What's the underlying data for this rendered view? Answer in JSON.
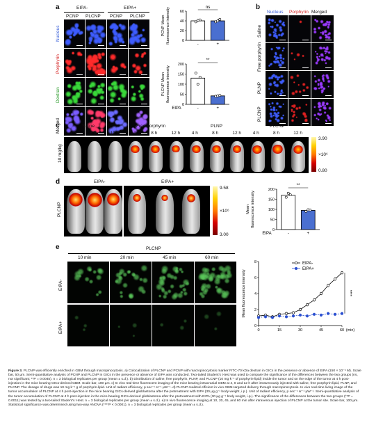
{
  "panel_a": {
    "letter": "a",
    "group_eipa_minus": "EIPA-",
    "group_eipa_plus": "EIPA+",
    "col_labels": [
      "PCNP",
      "PLCNP",
      "PCNP",
      "PLCNP"
    ],
    "row_labels": [
      "Nucleus",
      "Porphyrin",
      "Dextran",
      "Merged"
    ],
    "row_colors": [
      "#3a5fd8",
      "#d42020",
      "#2a9a2a",
      "#111111"
    ]
  },
  "panel_b": {
    "letter": "b",
    "legend_nucleus": "Nucleus",
    "legend_porphyrin": "Porphyrin",
    "legend_merged": "Merged",
    "row_labels": [
      "Saline",
      "Free porphyrin",
      "PLNP",
      "PLCNP"
    ]
  },
  "panel_c": {
    "letter": "c",
    "groups": [
      "Saline",
      "Free porphyrin",
      "PLNP",
      "PLCNP"
    ],
    "times": [
      "4 h",
      "8 h",
      "12 h"
    ],
    "dose_label": "10 mg/kg",
    "colorbar_max": "3.90",
    "colorbar_unit": "×10⁶",
    "colorbar_min": "0.80"
  },
  "panel_d": {
    "letter": "d",
    "group_minus": "EIPA-",
    "group_plus": "EIPA+",
    "row_label": "PLCNP",
    "colorbar_max": "9.58",
    "colorbar_unit": "×10⁶",
    "colorbar_min": "3.00"
  },
  "panel_e": {
    "letter": "e",
    "title": "PLCNP",
    "times": [
      "10 min",
      "20 min",
      "45 min",
      "60 min"
    ],
    "row_labels": [
      "EIPA-",
      "EIPA+"
    ]
  },
  "chart_data": [
    {
      "id": "a-top",
      "type": "bar",
      "categories": [
        "-",
        "+"
      ],
      "values": [
        40,
        40
      ],
      "points": [
        [
          38,
          41,
          42
        ],
        [
          38,
          40,
          43
        ]
      ],
      "ylabel": "PCNP Mean fluorescence intensity",
      "ylim": [
        0,
        60
      ],
      "yticks": [
        "0",
        "20",
        "40",
        "60"
      ],
      "significance": "ns",
      "colors": [
        "#ffffff",
        "#4a6fd0"
      ]
    },
    {
      "id": "a-bottom",
      "type": "bar",
      "categories": [
        "-",
        "+"
      ],
      "values": [
        130,
        42
      ],
      "points": [
        [
          155,
          100,
          135
        ],
        [
          40,
          42,
          44
        ]
      ],
      "ylabel": "PLCNP Mean fluorescence intensity",
      "xlabel": "EIPA",
      "ylim": [
        0,
        200
      ],
      "yticks": [
        "0",
        "50",
        "100",
        "150",
        "200"
      ],
      "significance": "**",
      "colors": [
        "#ffffff",
        "#4a6fd0"
      ]
    },
    {
      "id": "d",
      "type": "bar",
      "categories": [
        "-",
        "+"
      ],
      "values": [
        170,
        95
      ],
      "points": [
        [
          160,
          180,
          172
        ],
        [
          90,
          98,
          97
        ]
      ],
      "ylabel": "Mean fluorescence intensity",
      "xlabel": "EIPA",
      "ylim": [
        0,
        200
      ],
      "yticks": [
        "0",
        "50",
        "100",
        "150",
        "200"
      ],
      "significance": "**",
      "colors": [
        "#ffffff",
        "#4a6fd0"
      ]
    },
    {
      "id": "e",
      "type": "line",
      "x": [
        0,
        5,
        10,
        15,
        20,
        25,
        30,
        35,
        40,
        45,
        50,
        55,
        60
      ],
      "series": [
        {
          "name": "EIPA-",
          "values": [
            1.2,
            1.3,
            1.1,
            1.4,
            1.5,
            1.6,
            2.0,
            2.6,
            3.2,
            4.0,
            5.0,
            5.8,
            6.6
          ]
        },
        {
          "name": "EIPA+",
          "values": [
            1.0,
            1.1,
            1.0,
            1.2,
            1.1,
            1.2,
            1.3,
            1.2,
            1.4,
            1.3,
            1.5,
            1.4,
            1.5
          ]
        }
      ],
      "ylabel": "Mean fluorescence intensity",
      "xlabel": "(min)",
      "xticks": [
        "0",
        "15",
        "30",
        "45",
        "60"
      ],
      "yticks": [
        "0",
        "2",
        "4",
        "6",
        "8"
      ],
      "ylim": [
        0,
        8
      ],
      "xlim": [
        0,
        60
      ],
      "significance": "****"
    }
  ],
  "caption": {
    "label": "Figure 3.",
    "text": "PLCNP was efficiently enriched in GBM through macropinocytosis. a) Colocalization of PLCNP and PCNP with macropinocytosis marker FITC-70 kDa dextran in GICs in the presence or absence of EIPA (150 × 10⁻⁶ M). Scale bar, 50 µm. Semi-quantitative analysis of PCNP and PLCNP in GICs in the presence or absence of EIPA was conducted. Two-tailed Student's t-test was used to compare the significance of the differences between the two groups (ns, not significant; **P = 0.0045). n = 3 biological replicates per group (mean ± s.d.). b) Distribution of saline, free porphyrin, PLNP, and PLCNP (10 mg k⁻¹ of porphyrin-lipid) inside the tumor and on the edge of the tumor at 4 h post-injection in the mice bearing GICs-derived GBM. Scale bar, 100 µm. c) In vivo real-time fluorescent imaging of the mice bearing intracranial GBM at 4, 8 and 12 h after intravenously injected with saline, free porphyrin-lipid, PLNP, and PLCNP. The dosage of drugs was 10 mg k⁻¹ g of porphyrin-lipid. Unit of radiant efficiency, p sec⁻¹ sr⁻¹ µW⁻¹. d) PLCNP realized efficient in vivo GBM-targeted delivery through macropinocytosis. In vivo real-time living image of the tumor accumulation of PLCNP at 4 h post-injection in the mice bearing GICs-derived glioblastoma after the pretreatment with EIPA (30 µg g⁻¹ body weight, i.p.). Unit of radiant efficiency, p sec⁻¹ sr⁻¹ µW⁻¹. Semi-quantitative analysis of the tumor accumulation of PLCNP at 4 h post-injection in the mice bearing GICs-derived glioblastoma after the pretreatment with EIPA (30 µg g⁻¹ body weight, i.p.). The significance of the differences between the two groups (**P = 0.0011) was tested by a two-tailed Student's t-test. n = 3 biological replicates per group (mean ± s.d.). e) In vivo fluorescence imaging at 10, 20, 45, and 60 min after intravenous injection of PLCNP at the tumor site. Scale bar, 100 µm. Statistical significance was determined using two-way ANOVA (****P < 0.0001). n = 3 biological replicates per group (mean ± s.d.)."
  }
}
